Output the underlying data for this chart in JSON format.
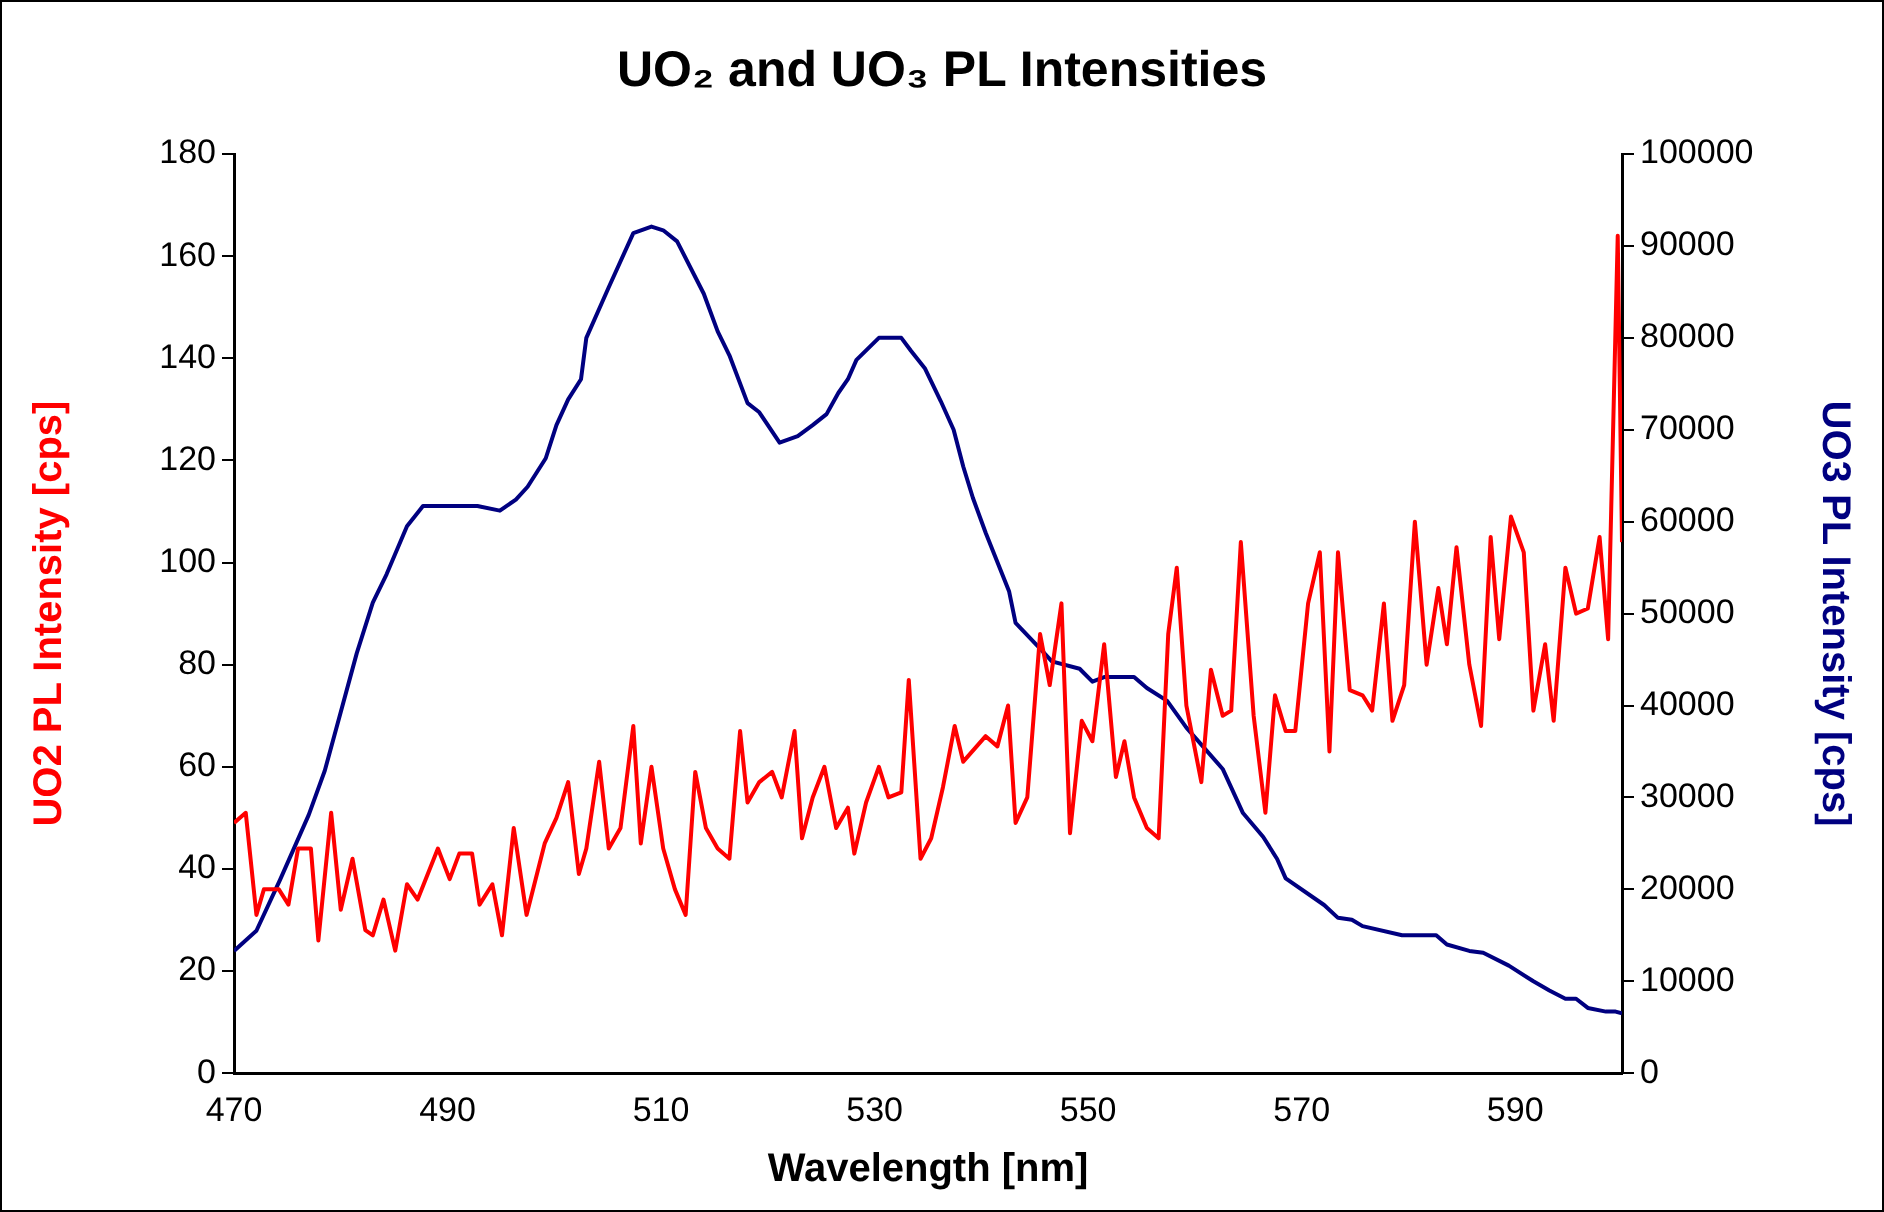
{
  "chart_data": {
    "type": "line",
    "title": "UO₂ and UO₃ PL Intensities",
    "xlabel": "Wavelength [nm]",
    "ylabel": "UO2 PL Intensity [cps]",
    "y2label": "UO3 PL Intensity [cps]",
    "xlim": [
      470,
      600
    ],
    "xticks": [
      470,
      490,
      510,
      530,
      550,
      570,
      590
    ],
    "ylim": [
      0,
      180
    ],
    "yticks": [
      0,
      20,
      40,
      60,
      80,
      100,
      120,
      140,
      160,
      180
    ],
    "y2lim": [
      0,
      100000
    ],
    "y2ticks": [
      0,
      10000,
      20000,
      30000,
      40000,
      50000,
      60000,
      70000,
      80000,
      90000,
      100000
    ],
    "grid": false,
    "legend": false,
    "marker": "none",
    "line_style": "solid",
    "series": [
      {
        "axis": "y",
        "color": "#ff0000",
        "x": [
          470,
          471.1,
          472.1,
          472.8,
          474.2,
          475.1,
          476.0,
          477.2,
          477.9,
          479.1,
          480.0,
          481.1,
          482.3,
          483.0,
          484.0,
          485.1,
          486.2,
          487.2,
          489.1,
          490.2,
          491.1,
          492.3,
          493.0,
          494.2,
          495.1,
          496.2,
          497.4,
          499.1,
          500.2,
          501.3,
          502.3,
          503.0,
          504.2,
          505.1,
          506.2,
          507.4,
          508.1,
          509.1,
          510.2,
          511.3,
          512.3,
          513.2,
          514.2,
          515.3,
          516.4,
          517.4,
          518.1,
          519.2,
          520.4,
          521.3,
          522.5,
          523.2,
          524.2,
          525.3,
          526.4,
          527.5,
          528.1,
          529.2,
          530.4,
          531.3,
          532.5,
          533.2,
          534.3,
          535.3,
          536.4,
          537.5,
          538.3,
          540.4,
          541.5,
          542.5,
          543.2,
          544.3,
          545.5,
          546.4,
          547.5,
          548.3,
          549.4,
          550.4,
          551.5,
          552.6,
          553.4,
          554.3,
          555.5,
          556.6,
          557.5,
          558.3,
          559.2,
          560.6,
          561.5,
          562.6,
          563.4,
          564.3,
          565.5,
          566.6,
          567.5,
          568.5,
          569.4,
          570.6,
          571.7,
          572.6,
          573.4,
          574.5,
          575.7,
          576.6,
          577.7,
          578.5,
          579.6,
          580.6,
          581.7,
          582.8,
          583.6,
          584.5,
          585.7,
          586.8,
          587.7,
          588.5,
          589.6,
          590.8,
          591.7,
          592.8,
          593.6,
          594.7,
          595.7,
          596.8,
          597.9,
          598.7,
          599.6,
          600
        ],
        "values": [
          49,
          51,
          31,
          36,
          36,
          33,
          44,
          44,
          26,
          51,
          32,
          42,
          28,
          27,
          34,
          24,
          37,
          34,
          44,
          38,
          43,
          43,
          33,
          37,
          27,
          48,
          31,
          45,
          50,
          57,
          39,
          44,
          61,
          44,
          48,
          68,
          45,
          60,
          44,
          36,
          31,
          59,
          48,
          44,
          42,
          67,
          53,
          57,
          59,
          54,
          67,
          46,
          54,
          60,
          48,
          52,
          43,
          53,
          60,
          54,
          55,
          77,
          42,
          46,
          56,
          68,
          61,
          66,
          64,
          72,
          49,
          54,
          86,
          76,
          92,
          47,
          69,
          65,
          84,
          58,
          65,
          54,
          48,
          46,
          86,
          99,
          72,
          57,
          79,
          70,
          71,
          104,
          70,
          51,
          74,
          67,
          67,
          92,
          102,
          63,
          102,
          75,
          74,
          71,
          92,
          69,
          76,
          108,
          80,
          95,
          84,
          103,
          80,
          68,
          105,
          85,
          109,
          102,
          71,
          84,
          69,
          99,
          90,
          91,
          105,
          85,
          164,
          104
        ]
      },
      {
        "axis": "y2",
        "color": "#000080",
        "x": [
          470,
          472.1,
          474.3,
          477,
          478.5,
          480,
          481.5,
          483,
          484.3,
          486.2,
          487.7,
          492.8,
          494.9,
          496.4,
          497.5,
          499.2,
          500.2,
          501.3,
          502.5,
          503,
          505.1,
          507.4,
          509.1,
          510.2,
          511.5,
          514,
          515.3,
          516.4,
          518.1,
          519.2,
          521.1,
          522.8,
          524.2,
          525.5,
          526.6,
          527.5,
          528.3,
          530.4,
          532.5,
          533.4,
          534.7,
          536.2,
          537.4,
          538.3,
          539.2,
          540.4,
          542.6,
          543.2,
          545.5,
          546.6,
          549.2,
          550.4,
          551.5,
          554.3,
          555.5,
          557.4,
          559.2,
          562.6,
          564.5,
          566.4,
          567.7,
          568.5,
          572.1,
          573.4,
          574.7,
          575.7,
          579.4,
          582.6,
          583.6,
          585.7,
          587,
          589.4,
          591.7,
          593.2,
          594.7,
          595.7,
          596.8,
          598.5,
          599.4,
          600
        ],
        "values": [
          13300,
          15500,
          21000,
          28100,
          32900,
          39300,
          45700,
          51200,
          54300,
          59500,
          61700,
          61700,
          61200,
          62400,
          63800,
          66900,
          70500,
          73300,
          75500,
          80000,
          85500,
          91400,
          92100,
          91700,
          90500,
          84800,
          80700,
          78100,
          72900,
          71900,
          68600,
          69300,
          70500,
          71700,
          74000,
          75500,
          77600,
          80000,
          80000,
          78600,
          76700,
          73100,
          70000,
          66000,
          62600,
          58800,
          52400,
          49000,
          46200,
          44800,
          44000,
          42600,
          43100,
          43100,
          41900,
          40500,
          37600,
          33100,
          28300,
          25700,
          23300,
          21200,
          18300,
          16900,
          16700,
          16000,
          15000,
          15000,
          14000,
          13300,
          13100,
          11700,
          10000,
          9000,
          8100,
          8100,
          7100,
          6700,
          6700,
          6500
        ]
      }
    ]
  }
}
